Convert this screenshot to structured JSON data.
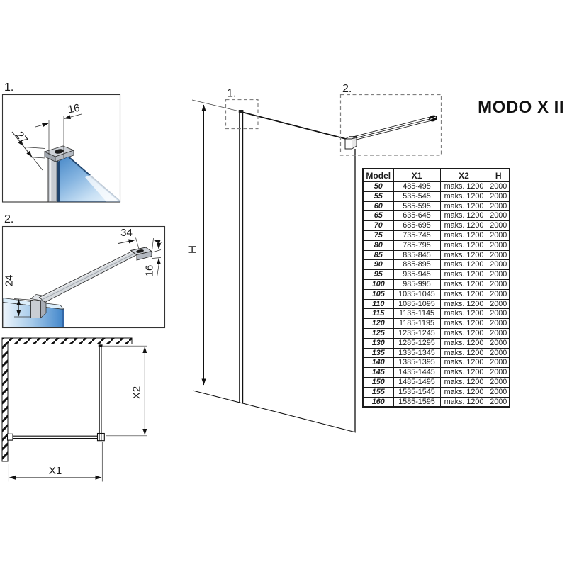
{
  "title": "MODO X II",
  "drawing": {
    "detail1": {
      "label": "1.",
      "dim_width": "16",
      "dim_depth": "27"
    },
    "detail2": {
      "label": "2.",
      "dim_end_width": "34",
      "dim_bar_height": "16",
      "dim_clamp_height": "24"
    },
    "main": {
      "callout1": "1.",
      "callout2": "2.",
      "dim_height": "H"
    },
    "plan": {
      "dim_width": "X1",
      "dim_depth": "X2"
    }
  },
  "table": {
    "headers": [
      "Model",
      "X1",
      "X2",
      "H"
    ],
    "rows": [
      [
        "50",
        "485-495",
        "maks. 1200",
        "2000"
      ],
      [
        "55",
        "535-545",
        "maks. 1200",
        "2000"
      ],
      [
        "60",
        "585-595",
        "maks. 1200",
        "2000"
      ],
      [
        "65",
        "635-645",
        "maks. 1200",
        "2000"
      ],
      [
        "70",
        "685-695",
        "maks. 1200",
        "2000"
      ],
      [
        "75",
        "735-745",
        "maks. 1200",
        "2000"
      ],
      [
        "80",
        "785-795",
        "maks. 1200",
        "2000"
      ],
      [
        "85",
        "835-845",
        "maks. 1200",
        "2000"
      ],
      [
        "90",
        "885-895",
        "maks. 1200",
        "2000"
      ],
      [
        "95",
        "935-945",
        "maks. 1200",
        "2000"
      ],
      [
        "100",
        "985-995",
        "maks. 1200",
        "2000"
      ],
      [
        "105",
        "1035-1045",
        "maks. 1200",
        "2000"
      ],
      [
        "110",
        "1085-1095",
        "maks. 1200",
        "2000"
      ],
      [
        "115",
        "1135-1145",
        "maks. 1200",
        "2000"
      ],
      [
        "120",
        "1185-1195",
        "maks. 1200",
        "2000"
      ],
      [
        "125",
        "1235-1245",
        "maks. 1200",
        "2000"
      ],
      [
        "130",
        "1285-1295",
        "maks. 1200",
        "2000"
      ],
      [
        "135",
        "1335-1345",
        "maks. 1200",
        "2000"
      ],
      [
        "140",
        "1385-1395",
        "maks. 1200",
        "2000"
      ],
      [
        "145",
        "1435-1445",
        "maks. 1200",
        "2000"
      ],
      [
        "150",
        "1485-1495",
        "maks. 1200",
        "2000"
      ],
      [
        "155",
        "1535-1545",
        "maks. 1200",
        "2000"
      ],
      [
        "160",
        "1585-1595",
        "maks. 1200",
        "2000"
      ]
    ]
  },
  "colors": {
    "glass_blue": "#4788c8",
    "profile_gray": "#c9cdd3",
    "line": "#1a1a1a"
  }
}
